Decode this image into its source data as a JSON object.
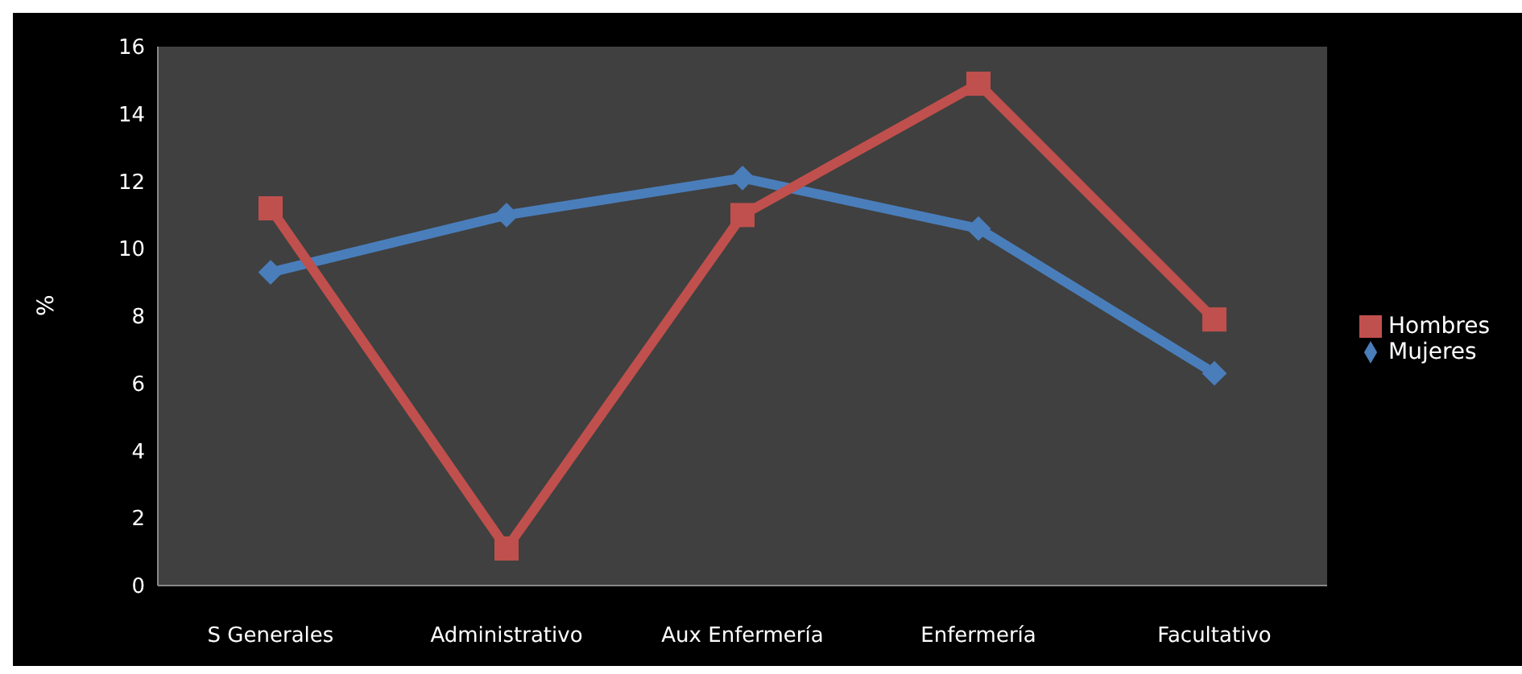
{
  "chart_data": {
    "type": "line",
    "ylabel": "%",
    "categories": [
      "S Generales",
      "Administrativo",
      "Aux Enfermería",
      "Enfermería",
      "Facultativo"
    ],
    "series": [
      {
        "name": "Mujeres",
        "color": "#4a7ebb",
        "marker": "diamond",
        "values": [
          9.3,
          11.0,
          12.1,
          10.6,
          6.3
        ]
      },
      {
        "name": "Hombres",
        "color": "#c0504d",
        "marker": "square",
        "values": [
          11.2,
          1.1,
          11.0,
          14.9,
          7.9
        ]
      }
    ],
    "ylim": [
      0,
      16
    ],
    "yticks": [
      0,
      2,
      4,
      6,
      8,
      10,
      12,
      14,
      16
    ],
    "grid": false,
    "legend": "right"
  }
}
